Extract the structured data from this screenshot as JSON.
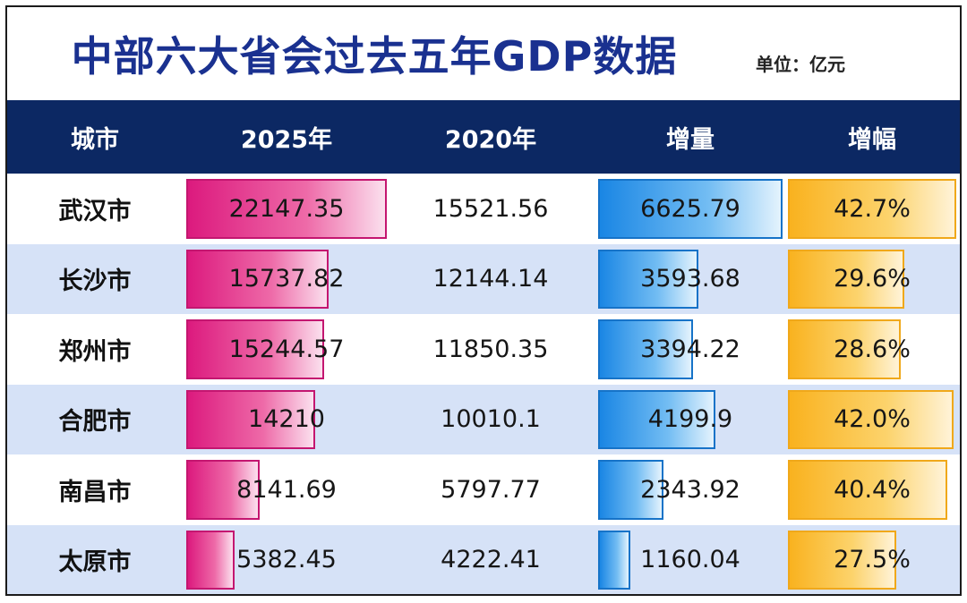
{
  "title": "中部六大省会过去五年GDP数据",
  "unit": "单位：亿元",
  "colors": {
    "header_bg": "#0c2863",
    "title": "#1a3190",
    "bar_2025": "#dc1a7e",
    "bar_increase": "#1a86e4",
    "bar_growth": "#f9b21f",
    "alt_row": "#d6e2f7"
  },
  "chart_data": {
    "type": "table",
    "columns": [
      "城市",
      "2025年",
      "2020年",
      "增量",
      "增幅"
    ],
    "rows": [
      {
        "city": "武汉市",
        "v2025": "22147.35",
        "v2020": "15521.56",
        "increase": "6625.79",
        "growth": "42.7%",
        "n2025": 22147.35,
        "nincrease": 6625.79,
        "ngrowth": 42.7
      },
      {
        "city": "长沙市",
        "v2025": "15737.82",
        "v2020": "12144.14",
        "increase": "3593.68",
        "growth": "29.6%",
        "n2025": 15737.82,
        "nincrease": 3593.68,
        "ngrowth": 29.6
      },
      {
        "city": "郑州市",
        "v2025": "15244.57",
        "v2020": "11850.35",
        "increase": "3394.22",
        "growth": "28.6%",
        "n2025": 15244.57,
        "nincrease": 3394.22,
        "ngrowth": 28.6
      },
      {
        "city": "合肥市",
        "v2025": "14210",
        "v2020": "10010.1",
        "increase": "4199.9",
        "growth": "42.0%",
        "n2025": 14210,
        "nincrease": 4199.9,
        "ngrowth": 42.0
      },
      {
        "city": "南昌市",
        "v2025": "8141.69",
        "v2020": "5797.77",
        "increase": "2343.92",
        "growth": "40.4%",
        "n2025": 8141.69,
        "nincrease": 2343.92,
        "ngrowth": 40.4
      },
      {
        "city": "太原市",
        "v2025": "5382.45",
        "v2020": "4222.41",
        "increase": "1160.04",
        "growth": "27.5%",
        "n2025": 5382.45,
        "nincrease": 1160.04,
        "ngrowth": 27.5
      }
    ]
  }
}
